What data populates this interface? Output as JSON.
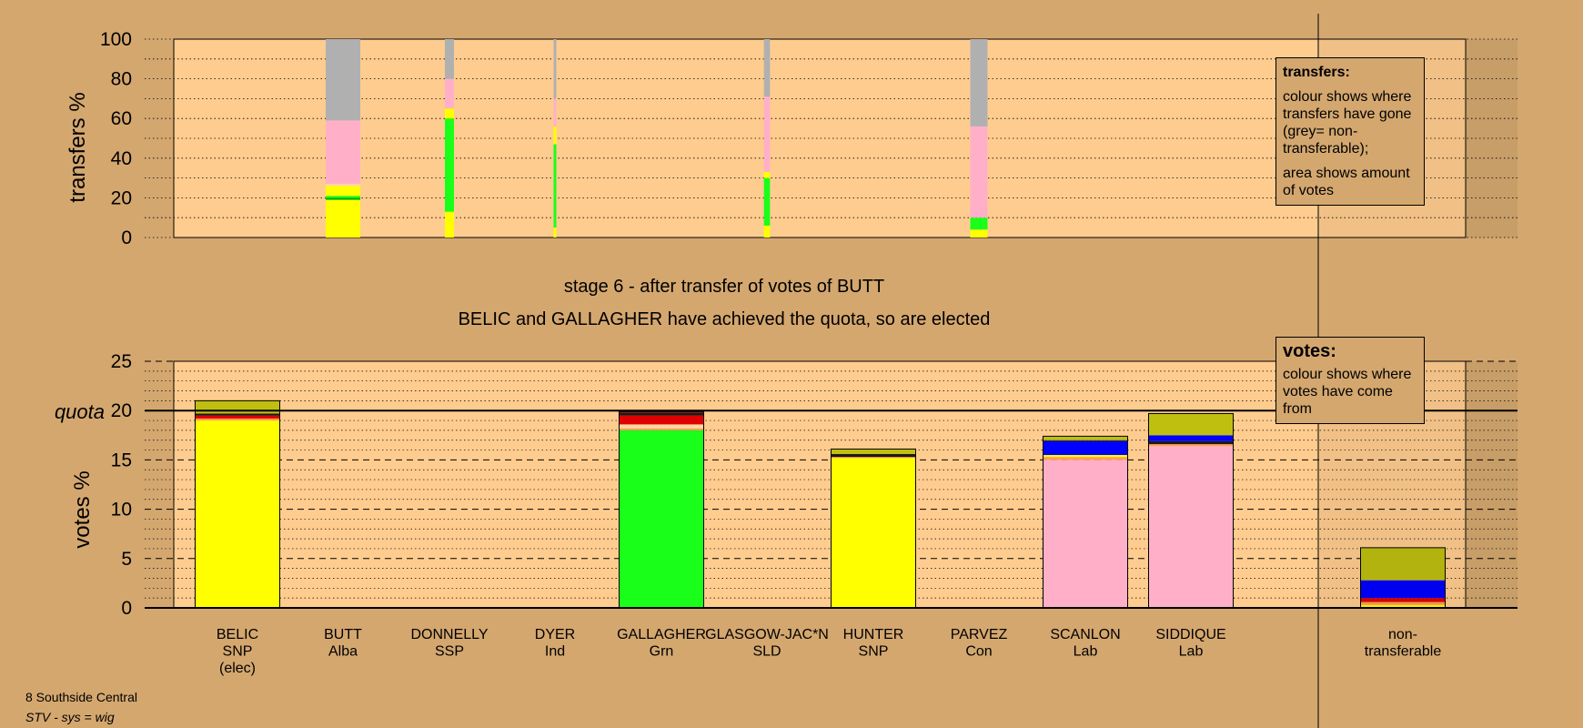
{
  "chart_data": [
    {
      "type": "bar",
      "subtype": "stacked-transfer",
      "ylabel": "transfers %",
      "ylim": [
        0,
        100
      ],
      "yticks": [
        0,
        20,
        40,
        60,
        80,
        100
      ],
      "categories": [
        "BELIC",
        "BUTT",
        "DONNELLY",
        "DYER",
        "GALLAGHER",
        "GLASGOW-JAC*N",
        "HUNTER",
        "PARVEZ",
        "SCANLON",
        "SIDDIQUE"
      ],
      "transfer_columns": [
        {
          "candidate": "BUTT",
          "width_share": 0.17,
          "segments": [
            {
              "from": 0,
              "to": 19,
              "color": "#ffff00"
            },
            {
              "from": 19,
              "to": 20,
              "color": "#00b000"
            },
            {
              "from": 20,
              "to": 21,
              "color": "#1aff1a"
            },
            {
              "from": 21,
              "to": 26,
              "color": "#ffff00"
            },
            {
              "from": 26,
              "to": 27,
              "color": "#ffd9a3"
            },
            {
              "from": 27,
              "to": 59,
              "color": "#ffb0c8"
            },
            {
              "from": 59,
              "to": 100,
              "color": "#b0b0b0"
            }
          ]
        },
        {
          "candidate": "DONNELLY",
          "width_share": 0.045,
          "segments": [
            {
              "from": 0,
              "to": 13,
              "color": "#ffff00"
            },
            {
              "from": 13,
              "to": 60,
              "color": "#1aff1a"
            },
            {
              "from": 60,
              "to": 65,
              "color": "#ffff00"
            },
            {
              "from": 65,
              "to": 80,
              "color": "#ffb0c8"
            },
            {
              "from": 80,
              "to": 100,
              "color": "#b0b0b0"
            }
          ]
        },
        {
          "candidate": "DYER",
          "width_share": 0.012,
          "segments": [
            {
              "from": 0,
              "to": 5,
              "color": "#ffff00"
            },
            {
              "from": 5,
              "to": 47,
              "color": "#1aff1a"
            },
            {
              "from": 47,
              "to": 56,
              "color": "#ffff00"
            },
            {
              "from": 56,
              "to": 70,
              "color": "#ffb0c8"
            },
            {
              "from": 70,
              "to": 100,
              "color": "#b0b0b0"
            }
          ]
        },
        {
          "candidate": "GLASGOW-JAC*N",
          "width_share": 0.03,
          "segments": [
            {
              "from": 0,
              "to": 6,
              "color": "#ffff00"
            },
            {
              "from": 6,
              "to": 30,
              "color": "#1aff1a"
            },
            {
              "from": 30,
              "to": 33,
              "color": "#ffff00"
            },
            {
              "from": 33,
              "to": 71,
              "color": "#ffb0c8"
            },
            {
              "from": 71,
              "to": 100,
              "color": "#b0b0b0"
            }
          ]
        },
        {
          "candidate": "PARVEZ",
          "width_share": 0.085,
          "segments": [
            {
              "from": 0,
              "to": 4,
              "color": "#ffff00"
            },
            {
              "from": 4,
              "to": 10,
              "color": "#1aff1a"
            },
            {
              "from": 10,
              "to": 56,
              "color": "#ffb0c8"
            },
            {
              "from": 56,
              "to": 100,
              "color": "#b0b0b0"
            }
          ]
        }
      ]
    },
    {
      "type": "bar",
      "subtype": "stacked",
      "ylabel": "votes %",
      "ylim": [
        0,
        25
      ],
      "yticks": [
        0,
        5,
        10,
        15,
        20,
        25
      ],
      "quota": 20,
      "quota_label": "quota",
      "categories": [
        "BELIC",
        "BUTT",
        "DONNELLY",
        "DYER",
        "GALLAGHER",
        "GLASGOW-JAC*N",
        "HUNTER",
        "PARVEZ",
        "SCANLON",
        "SIDDIQUE",
        "non-transferable"
      ],
      "bars": [
        {
          "name": "BELIC",
          "party": "SNP",
          "note": "(elec)",
          "segments": [
            {
              "value": 19.0,
              "color": "#ffff00"
            },
            {
              "value": 0.2,
              "color": "#ff9f55"
            },
            {
              "value": 0.3,
              "color": "#e00000"
            },
            {
              "value": 0.2,
              "color": "#1a1a1a"
            },
            {
              "value": 1.3,
              "color": "#bfbf10"
            }
          ]
        },
        {
          "name": "BUTT",
          "party": "Alba",
          "segments": []
        },
        {
          "name": "DONNELLY",
          "party": "SSP",
          "segments": []
        },
        {
          "name": "DYER",
          "party": "Ind",
          "segments": []
        },
        {
          "name": "GALLAGHER",
          "party": "Grn",
          "segments": [
            {
              "value": 18.0,
              "color": "#1aff1a"
            },
            {
              "value": 0.2,
              "color": "#ff9f55"
            },
            {
              "value": 0.4,
              "color": "#ffd9a3"
            },
            {
              "value": 0.9,
              "color": "#e00000"
            },
            {
              "value": 0.3,
              "color": "#1a1a1a"
            },
            {
              "value": 0.1,
              "color": "#e00000"
            }
          ]
        },
        {
          "name": "GLASGOW-JAC*N",
          "party": "SLD",
          "segments": []
        },
        {
          "name": "HUNTER",
          "party": "SNP",
          "segments": [
            {
              "value": 15.2,
              "color": "#ffff00"
            },
            {
              "value": 0.1,
              "color": "#ff9f55"
            },
            {
              "value": 0.3,
              "color": "#1a1a1a"
            },
            {
              "value": 0.5,
              "color": "#bfbf10"
            }
          ]
        },
        {
          "name": "PARVEZ",
          "party": "Con",
          "segments": []
        },
        {
          "name": "SCANLON",
          "party": "Lab",
          "segments": [
            {
              "value": 15.0,
              "color": "#ffb0c8"
            },
            {
              "value": 0.3,
              "color": "#ff9f55"
            },
            {
              "value": 0.2,
              "color": "#ffff00"
            },
            {
              "value": 1.4,
              "color": "#0000ff"
            },
            {
              "value": 0.1,
              "color": "#1a1a1a"
            },
            {
              "value": 0.4,
              "color": "#bfbf10"
            }
          ]
        },
        {
          "name": "SIDDIQUE",
          "party": "Lab",
          "segments": [
            {
              "value": 16.4,
              "color": "#ffb0c8"
            },
            {
              "value": 0.2,
              "color": "#ff9f55"
            },
            {
              "value": 0.3,
              "color": "#1a1a1a"
            },
            {
              "value": 0.6,
              "color": "#0000ff"
            },
            {
              "value": 2.2,
              "color": "#bfbf10"
            }
          ]
        },
        {
          "name": "non-transferable",
          "party": "",
          "segments": [
            {
              "value": 0.3,
              "color": "#ffff00"
            },
            {
              "value": 0.3,
              "color": "#ff9f55"
            },
            {
              "value": 0.4,
              "color": "#e00000"
            },
            {
              "value": 1.8,
              "color": "#0000ff"
            },
            {
              "value": 3.3,
              "color": "#bfbf10"
            }
          ]
        }
      ]
    }
  ],
  "labels": {
    "transfers_axis": "transfers %",
    "votes_axis": "votes %",
    "quota": "quota",
    "stage_title": "stage 6 - after transfer of votes of BUTT",
    "stage_subtitle": "BELIC and GALLAGHER have achieved the quota, so are elected",
    "candidates": [
      {
        "name": "BELIC",
        "party": "SNP",
        "note": "(elec)"
      },
      {
        "name": "BUTT",
        "party": "Alba",
        "note": ""
      },
      {
        "name": "DONNELLY",
        "party": "SSP",
        "note": ""
      },
      {
        "name": "DYER",
        "party": "Ind",
        "note": ""
      },
      {
        "name": "GALLAGHER",
        "party": "Grn",
        "note": ""
      },
      {
        "name": "GLASGOW-JAC*N",
        "party": "SLD",
        "note": ""
      },
      {
        "name": "HUNTER",
        "party": "SNP",
        "note": ""
      },
      {
        "name": "PARVEZ",
        "party": "Con",
        "note": ""
      },
      {
        "name": "SCANLON",
        "party": "Lab",
        "note": ""
      },
      {
        "name": "SIDDIQUE",
        "party": "Lab",
        "note": ""
      },
      {
        "name": "non-",
        "party": "transferable",
        "note": ""
      }
    ]
  },
  "legend_transfers": {
    "heading": "transfers:",
    "line1": "colour shows where transfers have gone (grey= non-transferable);",
    "line2": "area shows amount of votes"
  },
  "legend_votes": {
    "heading": "votes:",
    "line1": "colour shows where votes have come from"
  },
  "footer": {
    "ward": "8 Southside Central",
    "system": "STV - sys = wig"
  },
  "colors": {
    "background": "#d4a76f",
    "plot_area": "#ffcc8f"
  }
}
